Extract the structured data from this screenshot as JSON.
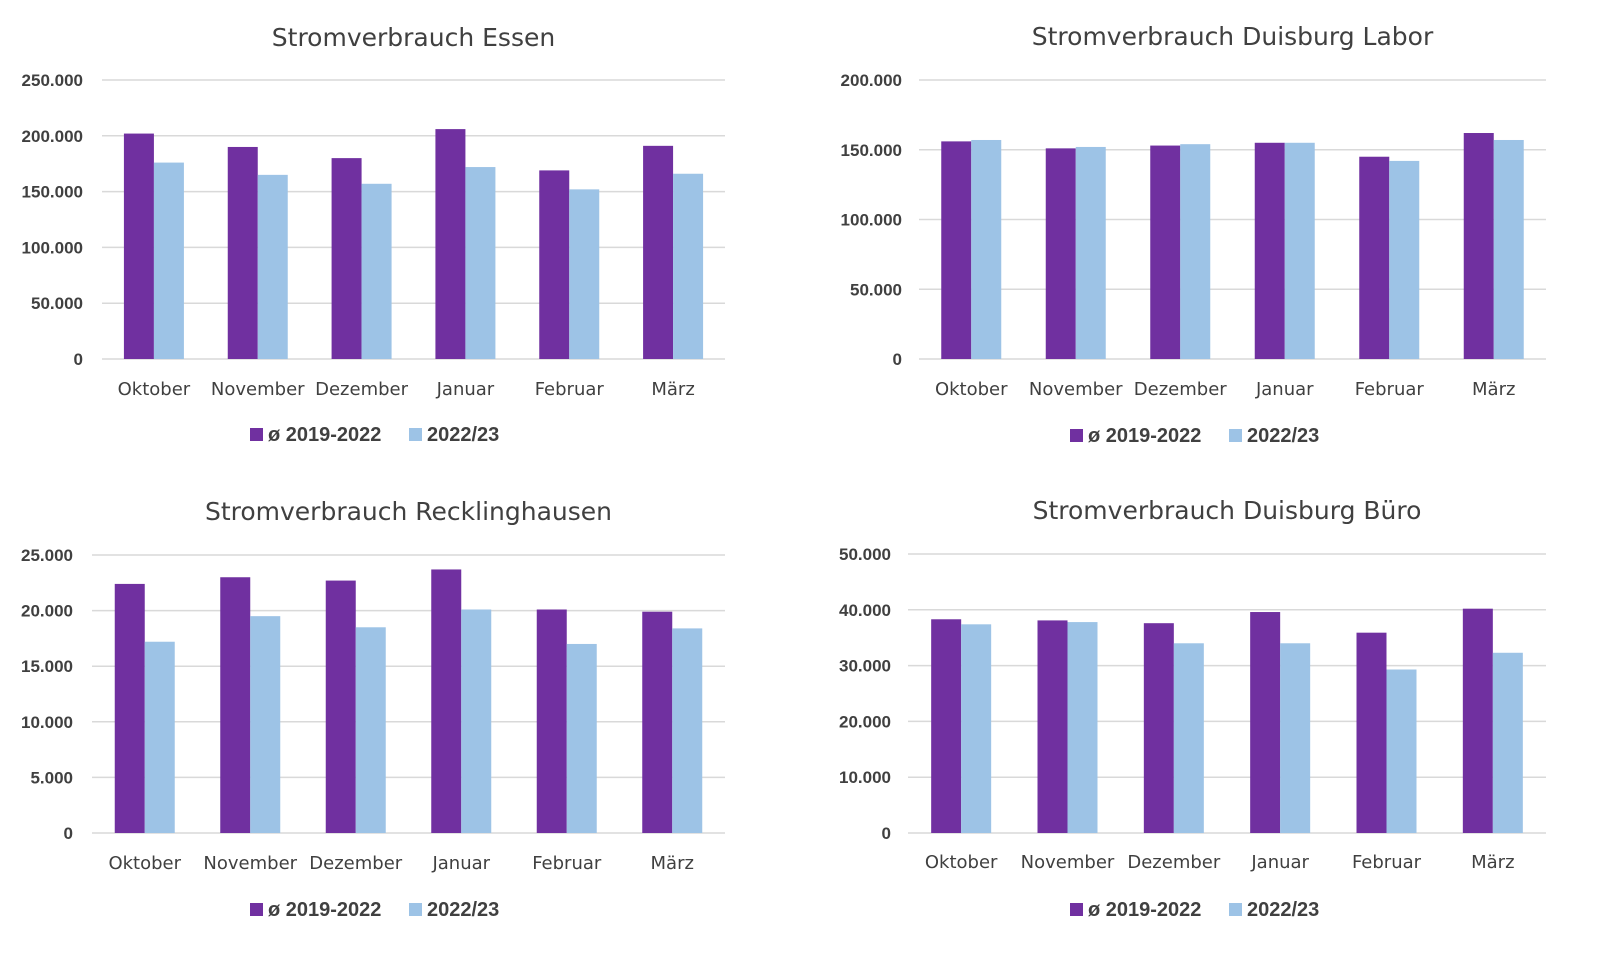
{
  "colors": {
    "avg": "#7030a0",
    "current": "#9dc3e6",
    "grid": "#d9d9d9",
    "text": "#404040"
  },
  "chart_data": [
    {
      "type": "bar",
      "title": "Stromverbrauch Essen",
      "categories": [
        "Oktober",
        "November",
        "Dezember",
        "Januar",
        "Februar",
        "März"
      ],
      "series": [
        {
          "name": "ø 2019-2022",
          "values": [
            202000,
            190000,
            180000,
            206000,
            169000,
            191000
          ]
        },
        {
          "name": "2022/23",
          "values": [
            176000,
            165000,
            157000,
            172000,
            152000,
            166000
          ]
        }
      ],
      "yticks": [
        "0",
        "50.000",
        "100.000",
        "150.000",
        "200.000",
        "250.000"
      ],
      "ylim": [
        0,
        250000
      ],
      "legend": "bottom",
      "grid": true
    },
    {
      "type": "bar",
      "title": "Stromverbrauch Duisburg Labor",
      "categories": [
        "Oktober",
        "November",
        "Dezember",
        "Januar",
        "Februar",
        "März"
      ],
      "series": [
        {
          "name": "ø 2019-2022",
          "values": [
            156000,
            151000,
            153000,
            155000,
            145000,
            162000
          ]
        },
        {
          "name": "2022/23",
          "values": [
            157000,
            152000,
            154000,
            155000,
            142000,
            157000
          ]
        }
      ],
      "yticks": [
        "0",
        "50.000",
        "100.000",
        "150.000",
        "200.000"
      ],
      "ylim": [
        0,
        200000
      ],
      "legend": "bottom",
      "grid": true
    },
    {
      "type": "bar",
      "title": "Stromverbrauch Recklinghausen",
      "categories": [
        "Oktober",
        "November",
        "Dezember",
        "Januar",
        "Februar",
        "März"
      ],
      "series": [
        {
          "name": "ø 2019-2022",
          "values": [
            22400,
            23000,
            22700,
            23700,
            20100,
            19900
          ]
        },
        {
          "name": "2022/23",
          "values": [
            17200,
            19500,
            18500,
            20100,
            17000,
            18400
          ]
        }
      ],
      "yticks": [
        "0",
        "5.000",
        "10.000",
        "15.000",
        "20.000",
        "25.000"
      ],
      "ylim": [
        0,
        25000
      ],
      "legend": "bottom",
      "grid": true
    },
    {
      "type": "bar",
      "title": "Stromverbrauch Duisburg Büro",
      "categories": [
        "Oktober",
        "November",
        "Dezember",
        "Januar",
        "Februar",
        "März"
      ],
      "series": [
        {
          "name": "ø 2019-2022",
          "values": [
            38300,
            38100,
            37600,
            39600,
            35900,
            40200
          ]
        },
        {
          "name": "2022/23",
          "values": [
            37400,
            37800,
            34000,
            34000,
            29300,
            32300
          ]
        }
      ],
      "yticks": [
        "0",
        "10.000",
        "20.000",
        "30.000",
        "40.000",
        "50.000"
      ],
      "ylim": [
        0,
        50000
      ],
      "legend": "bottom",
      "grid": true
    }
  ]
}
